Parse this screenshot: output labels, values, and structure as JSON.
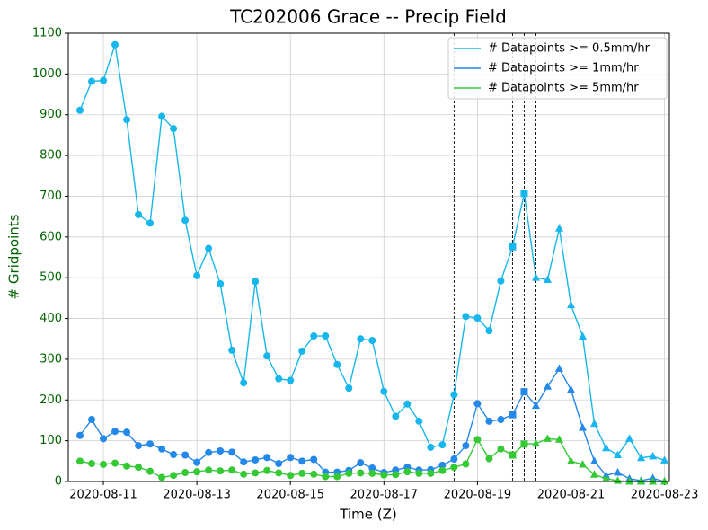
{
  "chart_data": {
    "type": "line",
    "title": "TC202006 Grace -- Precip Field",
    "xlabel": "Time (Z)",
    "ylabel": "# Gridpoints",
    "x": [
      "2020-08-10T12:00",
      "2020-08-10T18:00",
      "2020-08-11T00:00",
      "2020-08-11T06:00",
      "2020-08-11T12:00",
      "2020-08-11T18:00",
      "2020-08-12T00:00",
      "2020-08-12T06:00",
      "2020-08-12T12:00",
      "2020-08-12T18:00",
      "2020-08-13T00:00",
      "2020-08-13T06:00",
      "2020-08-13T12:00",
      "2020-08-13T18:00",
      "2020-08-14T00:00",
      "2020-08-14T06:00",
      "2020-08-14T12:00",
      "2020-08-14T18:00",
      "2020-08-15T00:00",
      "2020-08-15T06:00",
      "2020-08-15T12:00",
      "2020-08-15T18:00",
      "2020-08-16T00:00",
      "2020-08-16T06:00",
      "2020-08-16T12:00",
      "2020-08-16T18:00",
      "2020-08-17T00:00",
      "2020-08-17T06:00",
      "2020-08-17T12:00",
      "2020-08-17T18:00",
      "2020-08-18T00:00",
      "2020-08-18T06:00",
      "2020-08-18T12:00",
      "2020-08-18T18:00",
      "2020-08-19T00:00",
      "2020-08-19T06:00",
      "2020-08-19T12:00",
      "2020-08-19T18:00",
      "2020-08-20T00:00",
      "2020-08-20T06:00",
      "2020-08-20T12:00",
      "2020-08-20T18:00",
      "2020-08-21T00:00",
      "2020-08-21T06:00",
      "2020-08-21T12:00",
      "2020-08-21T18:00",
      "2020-08-22T00:00",
      "2020-08-22T06:00",
      "2020-08-22T12:00",
      "2020-08-22T18:00",
      "2020-08-23T00:00"
    ],
    "series": [
      {
        "name": "# Datapoints >= 0.5mm/hr",
        "color": "#17b6ec",
        "values": [
          911,
          982,
          984,
          1072,
          888,
          655,
          634,
          896,
          866,
          641,
          505,
          572,
          485,
          322,
          242,
          491,
          308,
          252,
          248,
          320,
          357,
          357,
          287,
          229,
          350,
          346,
          221,
          160,
          190,
          148,
          84,
          90,
          213,
          405,
          401,
          370,
          492,
          576,
          707,
          500,
          495,
          621,
          433,
          356,
          142,
          82,
          65,
          105,
          58,
          62,
          52
        ]
      },
      {
        "name": "# Datapoints >= 1mm/hr",
        "color": "#2388e8",
        "values": [
          113,
          152,
          105,
          123,
          121,
          88,
          92,
          80,
          66,
          65,
          47,
          71,
          75,
          72,
          48,
          53,
          59,
          44,
          59,
          50,
          54,
          23,
          23,
          27,
          46,
          33,
          22,
          28,
          35,
          28,
          29,
          40,
          55,
          88,
          191,
          148,
          152,
          164,
          220,
          186,
          233,
          277,
          225,
          132,
          50,
          15,
          22,
          7,
          2,
          8,
          0
        ]
      },
      {
        "name": "# Datapoints >= 5mm/hr",
        "color": "#35c935",
        "values": [
          50,
          44,
          42,
          45,
          38,
          35,
          25,
          10,
          15,
          22,
          24,
          28,
          26,
          28,
          18,
          21,
          27,
          21,
          15,
          20,
          18,
          12,
          12,
          20,
          21,
          20,
          16,
          17,
          24,
          20,
          20,
          27,
          35,
          43,
          103,
          56,
          80,
          65,
          92,
          93,
          105,
          103,
          50,
          42,
          17,
          7,
          2,
          0,
          0,
          0,
          0
        ]
      }
    ],
    "marker_styles": [
      {
        "start": "2020-08-10T12:00",
        "marker": "circle"
      },
      {
        "start": "2020-08-19T18:00",
        "marker": "square"
      },
      {
        "start": "2020-08-20T06:00",
        "marker": "triangle"
      }
    ],
    "vlines": [
      "2020-08-18T12:00",
      "2020-08-19T18:00",
      "2020-08-20T00:00",
      "2020-08-20T06:00"
    ],
    "xlim": [
      "2020-08-10T06:00",
      "2020-08-23T02:30"
    ],
    "xticks": [
      "2020-08-11",
      "2020-08-13",
      "2020-08-15",
      "2020-08-17",
      "2020-08-19",
      "2020-08-21",
      "2020-08-23"
    ],
    "ylim": [
      0,
      1100
    ],
    "yticks": [
      0,
      100,
      200,
      300,
      400,
      500,
      600,
      700,
      800,
      900,
      1000,
      1100
    ],
    "grid": true,
    "legend": "upper right",
    "tick_color": "#006400"
  }
}
